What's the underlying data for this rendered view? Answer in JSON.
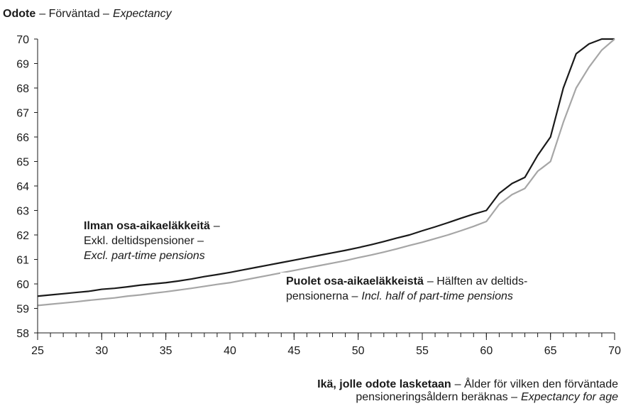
{
  "chart_data": {
    "type": "line",
    "ylabel": [
      {
        "text": "Odote",
        "style": "bold"
      },
      {
        "text": "– Förväntad –"
      },
      {
        "text": "Expectancy",
        "style": "italic"
      }
    ],
    "xlabel": [
      [
        {
          "text": "Ikä, jolle odote lasketaan",
          "style": "bold"
        },
        {
          "text": "– Ålder för vilken den förväntade"
        }
      ],
      [
        {
          "text": "pensioneringsåldern beräknas –"
        },
        {
          "text": "Expectancy for age",
          "style": "italic"
        }
      ]
    ],
    "x": [
      25,
      26,
      27,
      28,
      29,
      30,
      31,
      32,
      33,
      34,
      35,
      36,
      37,
      38,
      39,
      40,
      41,
      42,
      43,
      44,
      45,
      46,
      47,
      48,
      49,
      50,
      51,
      52,
      53,
      54,
      55,
      56,
      57,
      58,
      59,
      60,
      61,
      62,
      63,
      64,
      65,
      66,
      67,
      68,
      69,
      70
    ],
    "series": [
      {
        "name": "Ilman osa-aikaeläkkeitä",
        "color": "#1a1a1a",
        "values": [
          59.5,
          59.55,
          59.6,
          59.65,
          59.7,
          59.78,
          59.82,
          59.88,
          59.95,
          60.0,
          60.05,
          60.12,
          60.2,
          60.3,
          60.38,
          60.47,
          60.57,
          60.67,
          60.77,
          60.87,
          60.97,
          61.07,
          61.17,
          61.27,
          61.37,
          61.48,
          61.6,
          61.73,
          61.87,
          62.0,
          62.17,
          62.33,
          62.5,
          62.68,
          62.85,
          63.0,
          63.7,
          64.1,
          64.35,
          65.25,
          66.0,
          68.0,
          69.4,
          69.8,
          70.0,
          70.0
        ]
      },
      {
        "name": "Puolet osa-aikaeläkkeistä",
        "color": "#a6a6a6",
        "values": [
          59.12,
          59.17,
          59.22,
          59.27,
          59.33,
          59.38,
          59.43,
          59.5,
          59.55,
          59.62,
          59.68,
          59.75,
          59.82,
          59.9,
          59.98,
          60.05,
          60.15,
          60.25,
          60.35,
          60.45,
          60.55,
          60.65,
          60.75,
          60.85,
          60.95,
          61.07,
          61.18,
          61.3,
          61.43,
          61.57,
          61.7,
          61.85,
          62.0,
          62.17,
          62.35,
          62.55,
          63.25,
          63.65,
          63.9,
          64.6,
          65.0,
          66.6,
          68.0,
          68.85,
          69.55,
          70.0
        ]
      }
    ],
    "annotations": [
      {
        "lines": [
          [
            {
              "text": "Ilman osa-aikaeläkkeitä",
              "style": "bold"
            },
            {
              "text": "–"
            }
          ],
          [
            {
              "text": "Exkl. deltidspensioner –"
            }
          ],
          [
            {
              "text": "Excl. part-time pensions",
              "style": "italic"
            }
          ]
        ]
      },
      {
        "lines": [
          [
            {
              "text": "Puolet osa-aikaeläkkeistä",
              "style": "bold"
            },
            {
              "text": "– Hälften av deltids-"
            }
          ],
          [
            {
              "text": "pensionerna –"
            },
            {
              "text": "Incl. half of part-time pensions",
              "style": "italic"
            }
          ]
        ]
      }
    ],
    "xlim": [
      25,
      70
    ],
    "xticks": [
      25,
      30,
      35,
      40,
      45,
      50,
      55,
      60,
      65,
      70
    ],
    "ylim": [
      58,
      70
    ],
    "yticks": [
      58,
      59,
      60,
      61,
      62,
      63,
      64,
      65,
      66,
      67,
      68,
      69,
      70
    ],
    "grid": false
  }
}
